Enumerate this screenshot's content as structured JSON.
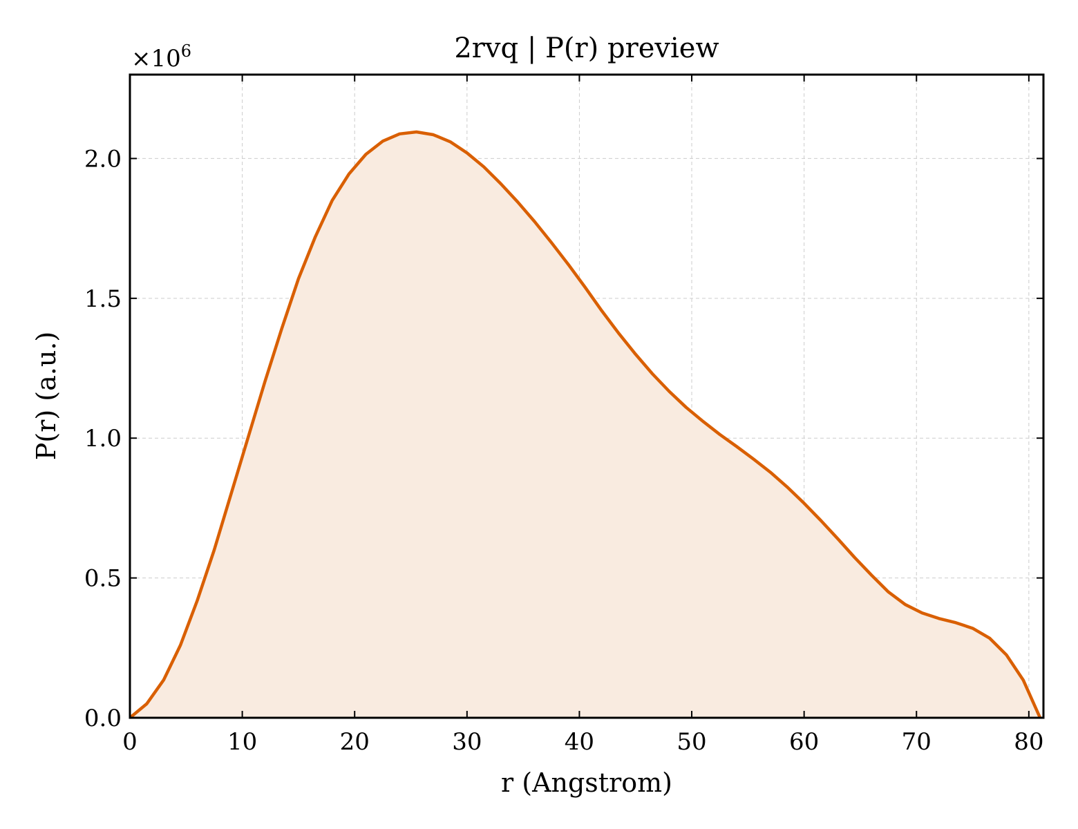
{
  "chart_data": {
    "type": "area",
    "title": "2rvq | P(r) preview",
    "xlabel": "r (Angstrom)",
    "ylabel": "P(r) (a.u.)",
    "y_multiplier": "×10",
    "y_multiplier_exponent": "6",
    "xlim": [
      0,
      81.3
    ],
    "ylim": [
      0,
      2.3
    ],
    "x_ticks": [
      0,
      10,
      20,
      30,
      40,
      50,
      60,
      70,
      80
    ],
    "x_tick_labels": [
      "0",
      "10",
      "20",
      "30",
      "40",
      "50",
      "60",
      "70",
      "80"
    ],
    "y_ticks": [
      0,
      0.5,
      1.0,
      1.5,
      2.0
    ],
    "y_tick_labels": [
      "0.0",
      "0.5",
      "1.0",
      "1.5",
      "2.0"
    ],
    "grid": true,
    "line_color": "#d95f02",
    "fill_color": "#f9ebe0",
    "series": [
      {
        "x": [
          0,
          1.5,
          3.0,
          4.5,
          6.0,
          7.5,
          9.0,
          10.5,
          12.0,
          13.5,
          15.0,
          16.5,
          18.0,
          19.5,
          21.0,
          22.5,
          24.0,
          25.5,
          27.0,
          28.5,
          30.0,
          31.5,
          33.0,
          34.5,
          36.0,
          37.5,
          39.0,
          40.5,
          42.0,
          43.5,
          45.0,
          46.5,
          48.0,
          49.5,
          51.0,
          52.5,
          54.0,
          55.5,
          57.0,
          58.5,
          60.0,
          61.5,
          63.0,
          64.5,
          66.0,
          67.5,
          69.0,
          70.5,
          72.0,
          73.5,
          75.0,
          76.5,
          78.0,
          79.5,
          81.0
        ],
        "y": [
          0.0,
          0.05,
          0.135,
          0.26,
          0.42,
          0.6,
          0.8,
          1.0,
          1.2,
          1.39,
          1.57,
          1.72,
          1.85,
          1.945,
          2.015,
          2.062,
          2.088,
          2.095,
          2.085,
          2.06,
          2.02,
          1.97,
          1.91,
          1.845,
          1.775,
          1.7,
          1.622,
          1.54,
          1.455,
          1.375,
          1.3,
          1.23,
          1.167,
          1.11,
          1.06,
          1.013,
          0.97,
          0.925,
          0.878,
          0.825,
          0.767,
          0.705,
          0.64,
          0.573,
          0.51,
          0.45,
          0.405,
          0.375,
          0.355,
          0.34,
          0.32,
          0.285,
          0.225,
          0.135,
          0.0
        ]
      }
    ]
  }
}
